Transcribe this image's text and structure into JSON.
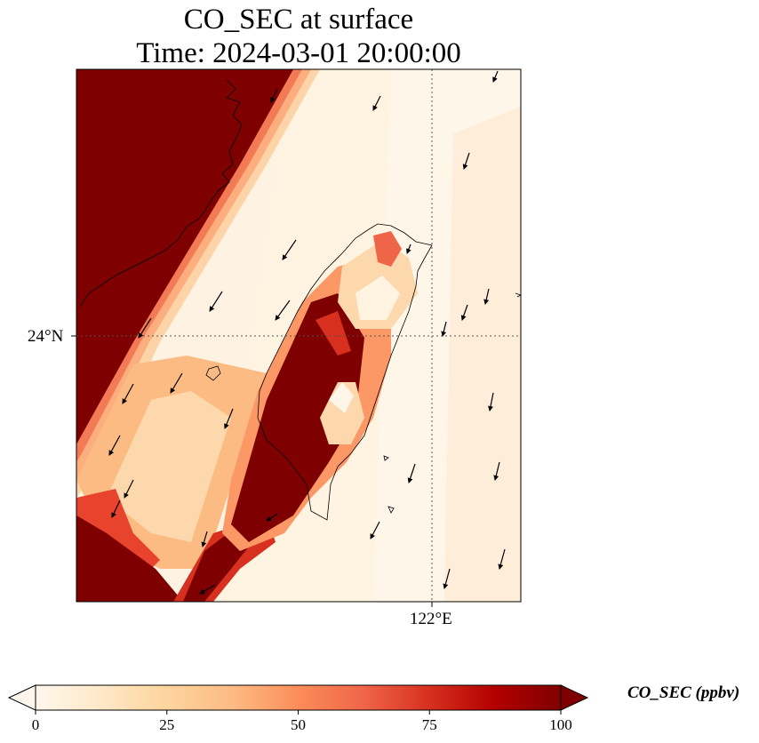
{
  "title": {
    "line1": "CO_SEC at surface",
    "line2": "Time: 2024-03-01 20:00:00"
  },
  "axes": {
    "lat_tick_label": "24°N",
    "lon_tick_label": "122°E",
    "gridlines": "dotted"
  },
  "colorbar": {
    "label": "CO_SEC (ppbv)",
    "min": 0,
    "max": 100,
    "ticks": [
      "0",
      "25",
      "50",
      "75",
      "100"
    ],
    "extend": "both",
    "colormap": [
      "#fff7ec",
      "#fee8c8",
      "#fdd49e",
      "#fdbb84",
      "#fc8d59",
      "#ef6548",
      "#d7301f",
      "#b30000",
      "#7f0000"
    ]
  },
  "wind": {
    "vector_count": 27,
    "prevailing_direction": "north-northeasterly"
  }
}
